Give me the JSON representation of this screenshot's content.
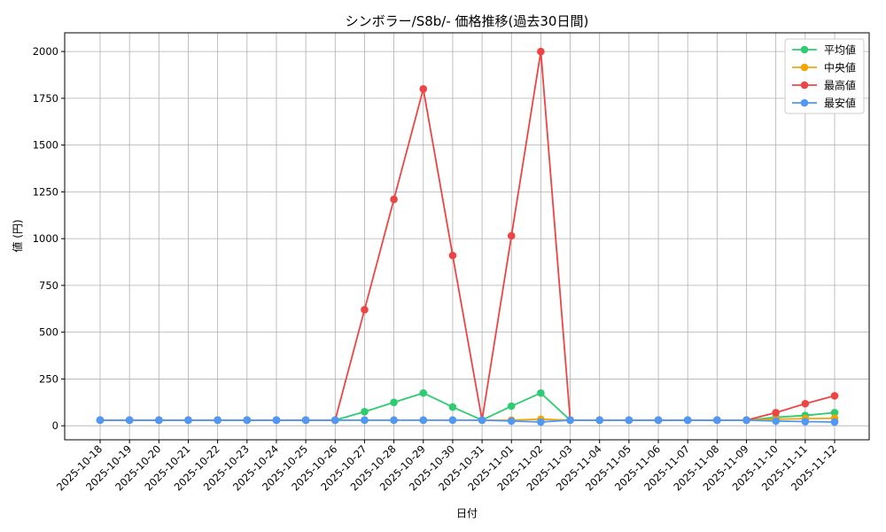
{
  "chart_data": {
    "type": "line",
    "title": "シンボラー/S8b/- 価格推移(過去30日間)",
    "xlabel": "日付",
    "ylabel": "値 (円)",
    "ylim": [
      -75,
      2100
    ],
    "yticks": [
      0,
      250,
      500,
      750,
      1000,
      1250,
      1500,
      1750,
      2000
    ],
    "grid": true,
    "legend_position": "top-right",
    "x": [
      "2025-10-18",
      "2025-10-19",
      "2025-10-20",
      "2025-10-21",
      "2025-10-22",
      "2025-10-23",
      "2025-10-24",
      "2025-10-25",
      "2025-10-26",
      "2025-10-27",
      "2025-10-28",
      "2025-10-29",
      "2025-10-30",
      "2025-10-31",
      "2025-11-01",
      "2025-11-02",
      "2025-11-03",
      "2025-11-04",
      "2025-11-05",
      "2025-11-06",
      "2025-11-07",
      "2025-11-08",
      "2025-11-09",
      "2025-11-10",
      "2025-11-11",
      "2025-11-12"
    ],
    "series": [
      {
        "name": "平均値",
        "color": "#2ecc71",
        "values": [
          30,
          30,
          30,
          30,
          30,
          30,
          30,
          30,
          30,
          75,
          125,
          175,
          100,
          30,
          105,
          175,
          30,
          30,
          30,
          30,
          30,
          30,
          30,
          45,
          55,
          70
        ]
      },
      {
        "name": "中央値",
        "color": "#f5a500",
        "values": [
          30,
          30,
          30,
          30,
          30,
          30,
          30,
          30,
          30,
          30,
          30,
          30,
          30,
          30,
          30,
          35,
          30,
          30,
          30,
          30,
          30,
          30,
          30,
          35,
          38,
          40
        ]
      },
      {
        "name": "最高値",
        "color": "#ef4444",
        "values": [
          30,
          30,
          30,
          30,
          30,
          30,
          30,
          30,
          30,
          620,
          1210,
          1800,
          910,
          30,
          1015,
          2000,
          30,
          30,
          30,
          30,
          30,
          30,
          30,
          70,
          118,
          160
        ]
      },
      {
        "name": "最安値",
        "color": "#4f98f5",
        "values": [
          30,
          30,
          30,
          30,
          30,
          30,
          30,
          30,
          30,
          30,
          30,
          30,
          30,
          30,
          25,
          20,
          30,
          30,
          30,
          30,
          30,
          30,
          30,
          25,
          22,
          20
        ]
      }
    ]
  }
}
